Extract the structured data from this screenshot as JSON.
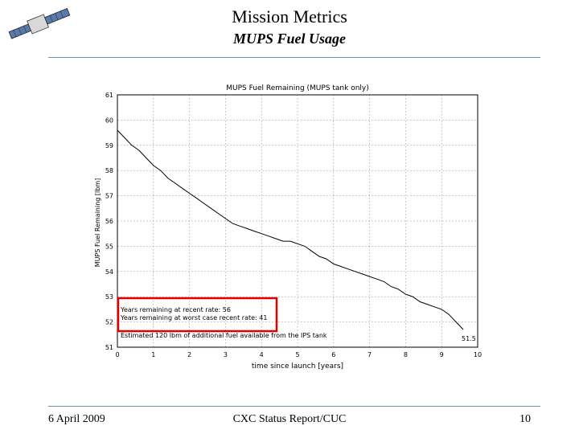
{
  "slide": {
    "title": "Mission Metrics",
    "subtitle": "MUPS Fuel Usage",
    "footer_left": "6 April 2009",
    "footer_center": "CXC Status Report/CUC",
    "footer_right": "10"
  },
  "logo": {
    "icon": "satellite-icon"
  },
  "chart_data": {
    "type": "line",
    "title": "MUPS Fuel Remaining (MUPS tank only)",
    "xlabel": "time since launch [years]",
    "ylabel": "MUPS Fuel Remaining [lbm]",
    "xlim": [
      0,
      10
    ],
    "ylim": [
      51,
      61
    ],
    "xticks": [
      "0",
      "1",
      "2",
      "3",
      "4",
      "5",
      "6",
      "7",
      "8",
      "9",
      "10"
    ],
    "yticks": [
      "51",
      "52",
      "53",
      "54",
      "55",
      "56",
      "57",
      "58",
      "59",
      "60",
      "61"
    ],
    "grid": true,
    "series": [
      {
        "color": "#000000",
        "x": [
          0,
          0.2,
          0.4,
          0.6,
          0.8,
          1.0,
          1.2,
          1.4,
          1.6,
          1.8,
          2.0,
          2.2,
          2.4,
          2.6,
          2.8,
          3.0,
          3.2,
          3.4,
          3.6,
          3.8,
          4.0,
          4.2,
          4.4,
          4.6,
          4.8,
          5.0,
          5.2,
          5.4,
          5.6,
          5.8,
          6.0,
          6.2,
          6.4,
          6.6,
          6.8,
          7.0,
          7.2,
          7.4,
          7.6,
          7.8,
          8.0,
          8.2,
          8.4,
          8.6,
          8.8,
          9.0,
          9.2,
          9.4,
          9.6
        ],
        "y": [
          59.6,
          59.3,
          59.0,
          58.8,
          58.5,
          58.2,
          58.0,
          57.7,
          57.5,
          57.3,
          57.1,
          56.9,
          56.7,
          56.5,
          56.3,
          56.1,
          55.9,
          55.8,
          55.7,
          55.6,
          55.5,
          55.4,
          55.3,
          55.2,
          55.2,
          55.1,
          55.0,
          54.8,
          54.6,
          54.5,
          54.3,
          54.2,
          54.1,
          54.0,
          53.9,
          53.8,
          53.7,
          53.6,
          53.4,
          53.3,
          53.1,
          53.0,
          52.8,
          52.7,
          52.6,
          52.5,
          52.3,
          52.0,
          51.7
        ]
      }
    ],
    "annotations": [
      "Years remaining at recent rate: 56",
      "Years remaining at worst case recent rate: 41",
      "Estimated 120 lbm of additional fuel available from the IPS tank",
      "51.5"
    ],
    "highlight_color": "#e00000"
  }
}
